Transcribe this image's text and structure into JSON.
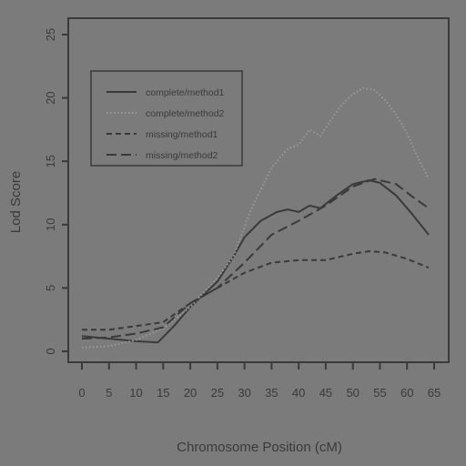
{
  "chart_data": {
    "type": "line",
    "title": "",
    "xlabel": "Chromosome Position (cM)",
    "ylabel": "Lod Score",
    "xlim": [
      0,
      65
    ],
    "ylim": [
      0,
      25
    ],
    "x_ticks": [
      0,
      5,
      10,
      15,
      20,
      25,
      30,
      35,
      40,
      45,
      50,
      55,
      60,
      65
    ],
    "y_ticks": [
      0,
      5,
      10,
      15,
      20,
      25
    ],
    "grid": false,
    "legend_position": "top-left",
    "series": [
      {
        "name": "complete/method1",
        "dash": "solid",
        "x": [
          0,
          5,
          10,
          14,
          17,
          20,
          25,
          28,
          30,
          33,
          36,
          38,
          40,
          42,
          44,
          47,
          50,
          53,
          55,
          58,
          61,
          64
        ],
        "y": [
          1.2,
          1.0,
          0.8,
          0.7,
          2.0,
          3.5,
          5.5,
          7.5,
          9.0,
          10.3,
          11.0,
          11.2,
          11.0,
          11.5,
          11.3,
          12.3,
          13.2,
          13.5,
          13.3,
          12.3,
          10.8,
          9.2
        ]
      },
      {
        "name": "complete/method2",
        "dash": "dotted",
        "x": [
          0,
          5,
          10,
          15,
          20,
          25,
          28,
          31,
          35,
          38,
          40,
          42,
          44,
          46,
          48,
          50,
          52,
          54,
          56,
          58,
          60,
          62,
          64
        ],
        "y": [
          0.3,
          0.4,
          0.9,
          1.8,
          3.5,
          5.8,
          7.5,
          11.0,
          14.5,
          16.0,
          16.3,
          17.5,
          17.0,
          18.3,
          19.5,
          20.3,
          20.8,
          20.6,
          19.8,
          18.7,
          17.2,
          15.3,
          13.6
        ]
      },
      {
        "name": "missing/method1",
        "dash": "dashed",
        "x": [
          0,
          5,
          10,
          15,
          20,
          25,
          30,
          35,
          40,
          45,
          50,
          53,
          56,
          60,
          64
        ],
        "y": [
          1.7,
          1.7,
          2.0,
          2.3,
          3.8,
          5.0,
          6.2,
          7.0,
          7.2,
          7.2,
          7.7,
          7.9,
          7.8,
          7.3,
          6.6
        ]
      },
      {
        "name": "missing/method2",
        "dash": "longdash",
        "x": [
          0,
          5,
          10,
          15,
          20,
          25,
          30,
          35,
          40,
          45,
          50,
          54,
          58,
          61,
          64
        ],
        "y": [
          1.0,
          1.1,
          1.4,
          1.9,
          3.8,
          5.0,
          7.0,
          9.2,
          10.3,
          11.5,
          13.0,
          13.6,
          13.2,
          12.2,
          11.3
        ]
      }
    ]
  },
  "colors": {
    "background": "#7b7b7b",
    "ink": "#3a3a3a",
    "light_ink": "#9a9a9a"
  }
}
